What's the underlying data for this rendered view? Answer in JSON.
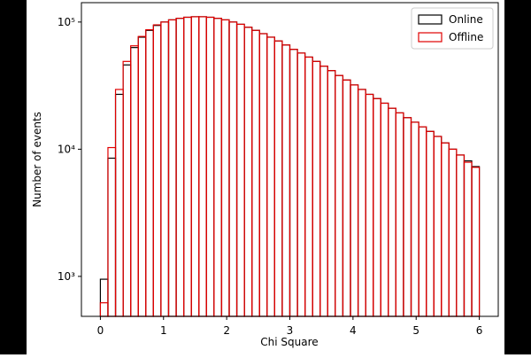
{
  "chart_data": {
    "type": "histogram",
    "xlabel": "Chi Square",
    "ylabel": "Number of events",
    "bins": [
      0,
      0.12,
      0.24,
      0.36,
      0.48,
      0.6,
      0.72,
      0.84,
      0.96,
      1.08,
      1.2,
      1.32,
      1.44,
      1.56,
      1.68,
      1.8,
      1.92,
      2.04,
      2.16,
      2.28,
      2.4,
      2.52,
      2.64,
      2.76,
      2.88,
      3,
      3.12,
      3.24,
      3.36,
      3.48,
      3.6,
      3.72,
      3.84,
      3.96,
      4.08,
      4.2,
      4.32,
      4.44,
      4.56,
      4.68,
      4.8,
      4.92,
      5.04,
      5.16,
      5.28,
      5.4,
      5.52,
      5.64,
      5.76,
      5.88,
      6
    ],
    "series": [
      {
        "name": "Online",
        "color": "#000000",
        "values": [
          950,
          8500,
          27000,
          46000,
          63000,
          76000,
          86000,
          94000,
          100000,
          104000,
          107000,
          109000,
          110000,
          110000,
          109000,
          107000,
          104000,
          100000,
          96000,
          91000,
          86000,
          81000,
          76000,
          71000,
          66000,
          61000,
          57000,
          53000,
          49000,
          45000,
          41500,
          38000,
          35000,
          32000,
          29500,
          27000,
          25000,
          23000,
          21000,
          19300,
          17700,
          16300,
          15000,
          13800,
          12600,
          11200,
          10000,
          9000,
          8100,
          7300
        ]
      },
      {
        "name": "Offline",
        "color": "#e00000",
        "values": [
          620,
          10300,
          29500,
          49000,
          65000,
          77000,
          87000,
          95000,
          100000,
          104000,
          107000,
          109000,
          110000,
          110000,
          109000,
          107000,
          104000,
          100000,
          96000,
          91000,
          86000,
          81000,
          76000,
          71000,
          66000,
          61000,
          57000,
          53000,
          49000,
          45000,
          41500,
          38000,
          35000,
          32000,
          29500,
          27000,
          25000,
          23000,
          21000,
          19300,
          17700,
          16300,
          15000,
          13800,
          12600,
          11200,
          10000,
          9000,
          7900,
          7200
        ]
      }
    ],
    "xlim": [
      -0.3,
      6.3
    ],
    "xticks": [
      0,
      1,
      2,
      3,
      4,
      5,
      6
    ],
    "ylim": [
      485,
      142000
    ],
    "yscale": "log",
    "yticks": [
      {
        "value": 1000,
        "label": "10³"
      },
      {
        "value": 10000,
        "label": "10⁴"
      },
      {
        "value": 100000,
        "label": "10⁵"
      }
    ],
    "legend": "upper right"
  }
}
